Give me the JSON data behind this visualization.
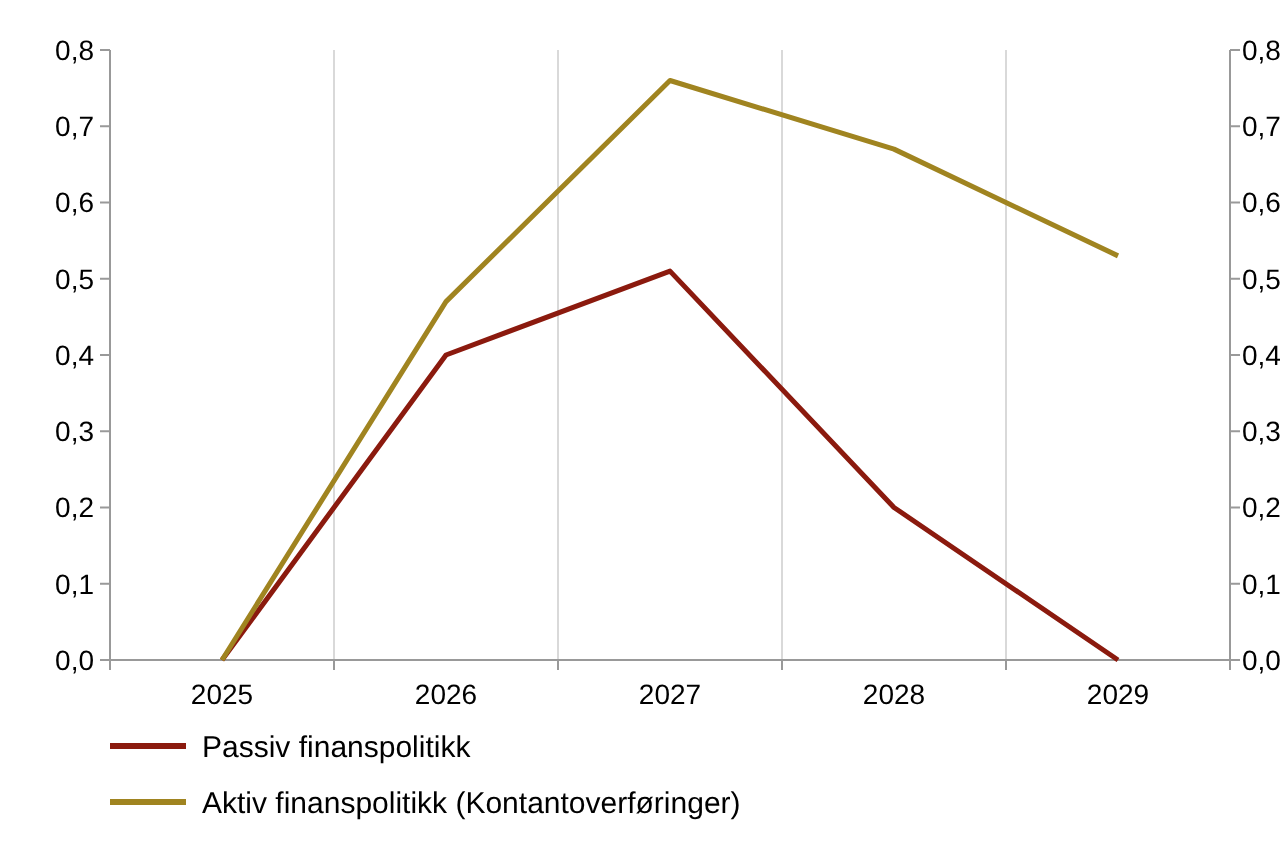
{
  "chart_data": {
    "type": "line",
    "categories": [
      "2025",
      "2026",
      "2027",
      "2028",
      "2029"
    ],
    "series": [
      {
        "name": "Passiv finanspolitikk",
        "color": "#8b1a0e",
        "values": [
          0,
          0.4,
          0.51,
          0.2,
          0
        ]
      },
      {
        "name": "Aktiv finanspolitikk (Kontantoverføringer)",
        "color": "#a08420",
        "values": [
          0,
          0.47,
          0.76,
          0.67,
          0.53
        ]
      }
    ],
    "ylim": [
      0,
      0.8
    ],
    "yticks": [
      {
        "value": 0,
        "label": "0,0"
      },
      {
        "value": 0.1,
        "label": "0,1"
      },
      {
        "value": 0.2,
        "label": "0,2"
      },
      {
        "value": 0.3,
        "label": "0,3"
      },
      {
        "value": 0.4,
        "label": "0,4"
      },
      {
        "value": 0.5,
        "label": "0,5"
      },
      {
        "value": 0.6,
        "label": "0,6"
      },
      {
        "value": 0.7,
        "label": "0,7"
      },
      {
        "value": 0.8,
        "label": "0,8"
      }
    ],
    "y2lim": [
      0,
      0.8
    ],
    "y2ticks": [
      {
        "value": 0,
        "label": "0,0"
      },
      {
        "value": 0.1,
        "label": "0,1"
      },
      {
        "value": 0.2,
        "label": "0,2"
      },
      {
        "value": 0.3,
        "label": "0,3"
      },
      {
        "value": 0.4,
        "label": "0,4"
      },
      {
        "value": 0.5,
        "label": "0,5"
      },
      {
        "value": 0.6,
        "label": "0,6"
      },
      {
        "value": 0.7,
        "label": "0,7"
      },
      {
        "value": 0.8,
        "label": "0,8"
      }
    ],
    "grid": "x",
    "legend": "bottom",
    "marker": "none",
    "line_style": "solid"
  }
}
